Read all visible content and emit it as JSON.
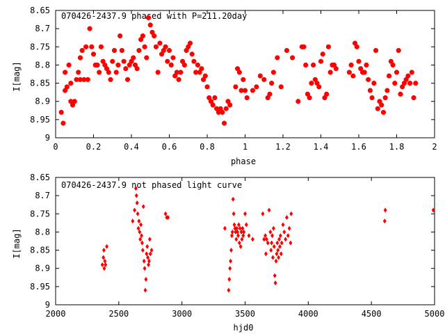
{
  "chart_data": [
    {
      "type": "scatter",
      "title": "070426-2437.9 phased with P=211.20day",
      "xlabel": "phase",
      "ylabel": "I[mag]",
      "xlim": [
        0,
        2
      ],
      "ylim": [
        8.65,
        9
      ],
      "y_inverted": true,
      "xticks": [
        0,
        0.2,
        0.4,
        0.6,
        0.8,
        1,
        1.2,
        1.4,
        1.6,
        1.8,
        2
      ],
      "yticks": [
        8.65,
        8.7,
        8.75,
        8.8,
        8.85,
        8.9,
        8.95,
        9
      ],
      "marker_color": "#ff0000",
      "marker_shape": "filled-octagon",
      "points": [
        [
          0.03,
          8.93
        ],
        [
          0.04,
          8.96
        ],
        [
          0.05,
          8.82
        ],
        [
          0.05,
          8.87
        ],
        [
          0.06,
          8.86
        ],
        [
          0.07,
          8.8
        ],
        [
          0.08,
          8.85
        ],
        [
          0.08,
          8.9
        ],
        [
          0.09,
          8.91
        ],
        [
          0.1,
          8.9
        ],
        [
          0.11,
          8.84
        ],
        [
          0.12,
          8.82
        ],
        [
          0.13,
          8.84
        ],
        [
          0.13,
          8.78
        ],
        [
          0.14,
          8.76
        ],
        [
          0.15,
          8.84
        ],
        [
          0.16,
          8.75
        ],
        [
          0.17,
          8.84
        ],
        [
          0.18,
          8.7
        ],
        [
          0.19,
          8.75
        ],
        [
          0.2,
          8.77
        ],
        [
          0.21,
          8.8
        ],
        [
          0.22,
          8.8
        ],
        [
          0.23,
          8.82
        ],
        [
          0.24,
          8.75
        ],
        [
          0.25,
          8.79
        ],
        [
          0.26,
          8.8
        ],
        [
          0.27,
          8.81
        ],
        [
          0.28,
          8.82
        ],
        [
          0.29,
          8.84
        ],
        [
          0.3,
          8.79
        ],
        [
          0.31,
          8.76
        ],
        [
          0.32,
          8.82
        ],
        [
          0.33,
          8.8
        ],
        [
          0.34,
          8.72
        ],
        [
          0.35,
          8.76
        ],
        [
          0.36,
          8.79
        ],
        [
          0.37,
          8.81
        ],
        [
          0.38,
          8.84
        ],
        [
          0.39,
          8.8
        ],
        [
          0.4,
          8.79
        ],
        [
          0.41,
          8.78
        ],
        [
          0.42,
          8.8
        ],
        [
          0.43,
          8.81
        ],
        [
          0.44,
          8.76
        ],
        [
          0.45,
          8.73
        ],
        [
          0.46,
          8.72
        ],
        [
          0.47,
          8.75
        ],
        [
          0.48,
          8.78
        ],
        [
          0.49,
          8.67
        ],
        [
          0.5,
          8.69
        ],
        [
          0.51,
          8.71
        ],
        [
          0.52,
          8.72
        ],
        [
          0.53,
          8.75
        ],
        [
          0.54,
          8.82
        ],
        [
          0.55,
          8.74
        ],
        [
          0.56,
          8.77
        ],
        [
          0.57,
          8.76
        ],
        [
          0.58,
          8.75
        ],
        [
          0.59,
          8.79
        ],
        [
          0.6,
          8.76
        ],
        [
          0.61,
          8.8
        ],
        [
          0.62,
          8.78
        ],
        [
          0.63,
          8.83
        ],
        [
          0.64,
          8.82
        ],
        [
          0.65,
          8.84
        ],
        [
          0.66,
          8.82
        ],
        [
          0.67,
          8.79
        ],
        [
          0.68,
          8.8
        ],
        [
          0.69,
          8.76
        ],
        [
          0.7,
          8.75
        ],
        [
          0.71,
          8.74
        ],
        [
          0.72,
          8.77
        ],
        [
          0.73,
          8.79
        ],
        [
          0.74,
          8.82
        ],
        [
          0.75,
          8.8
        ],
        [
          0.76,
          8.82
        ],
        [
          0.77,
          8.81
        ],
        [
          0.78,
          8.84
        ],
        [
          0.79,
          8.83
        ],
        [
          0.8,
          8.86
        ],
        [
          0.81,
          8.89
        ],
        [
          0.82,
          8.9
        ],
        [
          0.83,
          8.91
        ],
        [
          0.84,
          8.89
        ],
        [
          0.85,
          8.92
        ],
        [
          0.86,
          8.93
        ],
        [
          0.87,
          8.92
        ],
        [
          0.88,
          8.93
        ],
        [
          0.89,
          8.96
        ],
        [
          0.9,
          8.92
        ],
        [
          0.91,
          8.9
        ],
        [
          0.92,
          8.91
        ],
        [
          0.95,
          8.86
        ],
        [
          0.96,
          8.81
        ],
        [
          0.97,
          8.82
        ],
        [
          0.98,
          8.87
        ],
        [
          0.99,
          8.84
        ],
        [
          1.0,
          8.87
        ],
        [
          1.01,
          8.89
        ],
        [
          1.04,
          8.87
        ],
        [
          1.06,
          8.86
        ],
        [
          1.08,
          8.83
        ],
        [
          1.1,
          8.84
        ],
        [
          1.12,
          8.89
        ],
        [
          1.13,
          8.88
        ],
        [
          1.14,
          8.85
        ],
        [
          1.15,
          8.82
        ],
        [
          1.17,
          8.78
        ],
        [
          1.19,
          8.86
        ],
        [
          1.22,
          8.76
        ],
        [
          1.25,
          8.78
        ],
        [
          1.28,
          8.9
        ],
        [
          1.3,
          8.75
        ],
        [
          1.31,
          8.75
        ],
        [
          1.32,
          8.8
        ],
        [
          1.33,
          8.88
        ],
        [
          1.34,
          8.89
        ],
        [
          1.35,
          8.85
        ],
        [
          1.36,
          8.8
        ],
        [
          1.37,
          8.84
        ],
        [
          1.38,
          8.85
        ],
        [
          1.39,
          8.86
        ],
        [
          1.4,
          8.79
        ],
        [
          1.41,
          8.77
        ],
        [
          1.42,
          8.89
        ],
        [
          1.43,
          8.88
        ],
        [
          1.44,
          8.75
        ],
        [
          1.45,
          8.82
        ],
        [
          1.46,
          8.8
        ],
        [
          1.47,
          8.8
        ],
        [
          1.48,
          8.81
        ],
        [
          1.55,
          8.82
        ],
        [
          1.56,
          8.8
        ],
        [
          1.57,
          8.83
        ],
        [
          1.58,
          8.74
        ],
        [
          1.59,
          8.75
        ],
        [
          1.6,
          8.79
        ],
        [
          1.61,
          8.81
        ],
        [
          1.62,
          8.82
        ],
        [
          1.63,
          8.82
        ],
        [
          1.64,
          8.8
        ],
        [
          1.65,
          8.84
        ],
        [
          1.66,
          8.87
        ],
        [
          1.67,
          8.89
        ],
        [
          1.68,
          8.85
        ],
        [
          1.69,
          8.76
        ],
        [
          1.7,
          8.92
        ],
        [
          1.71,
          8.9
        ],
        [
          1.72,
          8.91
        ],
        [
          1.73,
          8.93
        ],
        [
          1.74,
          8.89
        ],
        [
          1.75,
          8.87
        ],
        [
          1.76,
          8.83
        ],
        [
          1.77,
          8.79
        ],
        [
          1.78,
          8.8
        ],
        [
          1.79,
          8.85
        ],
        [
          1.8,
          8.82
        ],
        [
          1.81,
          8.76
        ],
        [
          1.82,
          8.88
        ],
        [
          1.83,
          8.86
        ],
        [
          1.84,
          8.85
        ],
        [
          1.85,
          8.84
        ],
        [
          1.86,
          8.83
        ],
        [
          1.87,
          8.85
        ],
        [
          1.88,
          8.82
        ],
        [
          1.89,
          8.89
        ],
        [
          1.9,
          8.85
        ]
      ]
    },
    {
      "type": "scatter",
      "title": "070426-2437.9 not phased light curve",
      "xlabel": "hjd0",
      "ylabel": "I[mag]",
      "xlim": [
        2000,
        5000
      ],
      "ylim": [
        8.65,
        9
      ],
      "y_inverted": true,
      "xticks": [
        2000,
        2500,
        3000,
        3500,
        4000,
        4500,
        5000
      ],
      "yticks": [
        8.65,
        8.7,
        8.75,
        8.8,
        8.85,
        8.9,
        8.95,
        9
      ],
      "marker_color": "#ff0000",
      "marker_shape": "filled-diamond",
      "points": [
        [
          2370,
          8.89
        ],
        [
          2378,
          8.87
        ],
        [
          2382,
          8.85
        ],
        [
          2385,
          8.9
        ],
        [
          2390,
          8.88
        ],
        [
          2395,
          8.89
        ],
        [
          2405,
          8.84
        ],
        [
          2610,
          8.77
        ],
        [
          2625,
          8.74
        ],
        [
          2635,
          8.68
        ],
        [
          2640,
          8.7
        ],
        [
          2645,
          8.72
        ],
        [
          2650,
          8.75
        ],
        [
          2655,
          8.79
        ],
        [
          2660,
          8.77
        ],
        [
          2665,
          8.8
        ],
        [
          2670,
          8.82
        ],
        [
          2675,
          8.78
        ],
        [
          2680,
          8.81
        ],
        [
          2685,
          8.83
        ],
        [
          2690,
          8.85
        ],
        [
          2695,
          8.73
        ],
        [
          2700,
          8.88
        ],
        [
          2705,
          8.9
        ],
        [
          2710,
          8.96
        ],
        [
          2715,
          8.93
        ],
        [
          2720,
          8.86
        ],
        [
          2725,
          8.84
        ],
        [
          2730,
          8.87
        ],
        [
          2735,
          8.89
        ],
        [
          2740,
          8.88
        ],
        [
          2745,
          8.82
        ],
        [
          2750,
          8.86
        ],
        [
          2760,
          8.85
        ],
        [
          2870,
          8.75
        ],
        [
          2880,
          8.76
        ],
        [
          2890,
          8.76
        ],
        [
          3340,
          8.79
        ],
        [
          3370,
          8.96
        ],
        [
          3375,
          8.93
        ],
        [
          3380,
          8.9
        ],
        [
          3385,
          8.88
        ],
        [
          3390,
          8.85
        ],
        [
          3395,
          8.81
        ],
        [
          3400,
          8.8
        ],
        [
          3405,
          8.71
        ],
        [
          3410,
          8.75
        ],
        [
          3415,
          8.78
        ],
        [
          3420,
          8.79
        ],
        [
          3425,
          8.8
        ],
        [
          3430,
          8.82
        ],
        [
          3435,
          8.79
        ],
        [
          3440,
          8.8
        ],
        [
          3445,
          8.81
        ],
        [
          3450,
          8.78
        ],
        [
          3455,
          8.83
        ],
        [
          3460,
          8.79
        ],
        [
          3465,
          8.84
        ],
        [
          3470,
          8.8
        ],
        [
          3475,
          8.82
        ],
        [
          3480,
          8.79
        ],
        [
          3485,
          8.81
        ],
        [
          3490,
          8.8
        ],
        [
          3500,
          8.75
        ],
        [
          3510,
          8.78
        ],
        [
          3530,
          8.81
        ],
        [
          3560,
          8.82
        ],
        [
          3640,
          8.75
        ],
        [
          3650,
          8.82
        ],
        [
          3660,
          8.81
        ],
        [
          3665,
          8.86
        ],
        [
          3670,
          8.82
        ],
        [
          3680,
          8.83
        ],
        [
          3690,
          8.74
        ],
        [
          3700,
          8.8
        ],
        [
          3705,
          8.85
        ],
        [
          3710,
          8.83
        ],
        [
          3715,
          8.81
        ],
        [
          3720,
          8.87
        ],
        [
          3725,
          8.79
        ],
        [
          3730,
          8.84
        ],
        [
          3735,
          8.92
        ],
        [
          3740,
          8.94
        ],
        [
          3745,
          8.88
        ],
        [
          3750,
          8.86
        ],
        [
          3755,
          8.83
        ],
        [
          3760,
          8.85
        ],
        [
          3765,
          8.87
        ],
        [
          3770,
          8.82
        ],
        [
          3775,
          8.84
        ],
        [
          3780,
          8.81
        ],
        [
          3785,
          8.86
        ],
        [
          3790,
          8.83
        ],
        [
          3800,
          8.78
        ],
        [
          3810,
          8.8
        ],
        [
          3820,
          8.82
        ],
        [
          3830,
          8.76
        ],
        [
          3840,
          8.81
        ],
        [
          3850,
          8.79
        ],
        [
          3860,
          8.83
        ],
        [
          3865,
          8.75
        ],
        [
          4605,
          8.77
        ],
        [
          4610,
          8.74
        ],
        [
          4990,
          8.74
        ]
      ]
    }
  ]
}
